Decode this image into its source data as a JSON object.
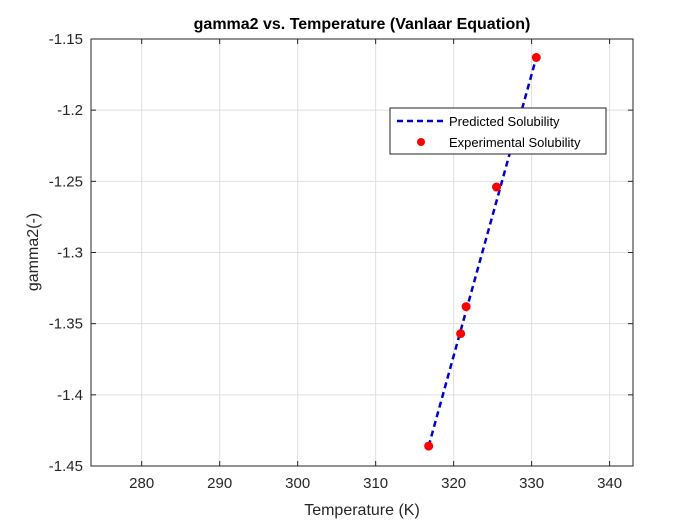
{
  "chart_data": {
    "type": "line",
    "title": "gamma2 vs. Temperature (Vanlaar Equation)",
    "xlabel": "Temperature (K)",
    "ylabel": "gamma2(-)",
    "xlim": [
      273.5,
      343
    ],
    "ylim": [
      -1.45,
      -1.15
    ],
    "xticks": [
      280,
      290,
      300,
      310,
      320,
      330,
      340
    ],
    "yticks": [
      -1.45,
      -1.4,
      -1.35,
      -1.3,
      -1.25,
      -1.2,
      -1.15
    ],
    "xtick_labels": [
      "280",
      "290",
      "300",
      "310",
      "320",
      "330",
      "340"
    ],
    "ytick_labels": [
      "-1.45",
      "-1.4",
      "-1.35",
      "-1.3",
      "-1.25",
      "-1.2",
      "-1.15"
    ],
    "grid": true,
    "legend_position": "top-right",
    "series": [
      {
        "name": "Predicted Solubility",
        "style": "dashed-line",
        "color": "#0000cc",
        "x": [
          316.8,
          330.6
        ],
        "y": [
          -1.436,
          -1.163
        ]
      },
      {
        "name": "Experimental Solubility",
        "style": "markers",
        "color": "#ff0000",
        "x": [
          316.8,
          320.9,
          321.6,
          325.5,
          330.6
        ],
        "y": [
          -1.436,
          -1.357,
          -1.338,
          -1.254,
          -1.163
        ]
      }
    ]
  }
}
